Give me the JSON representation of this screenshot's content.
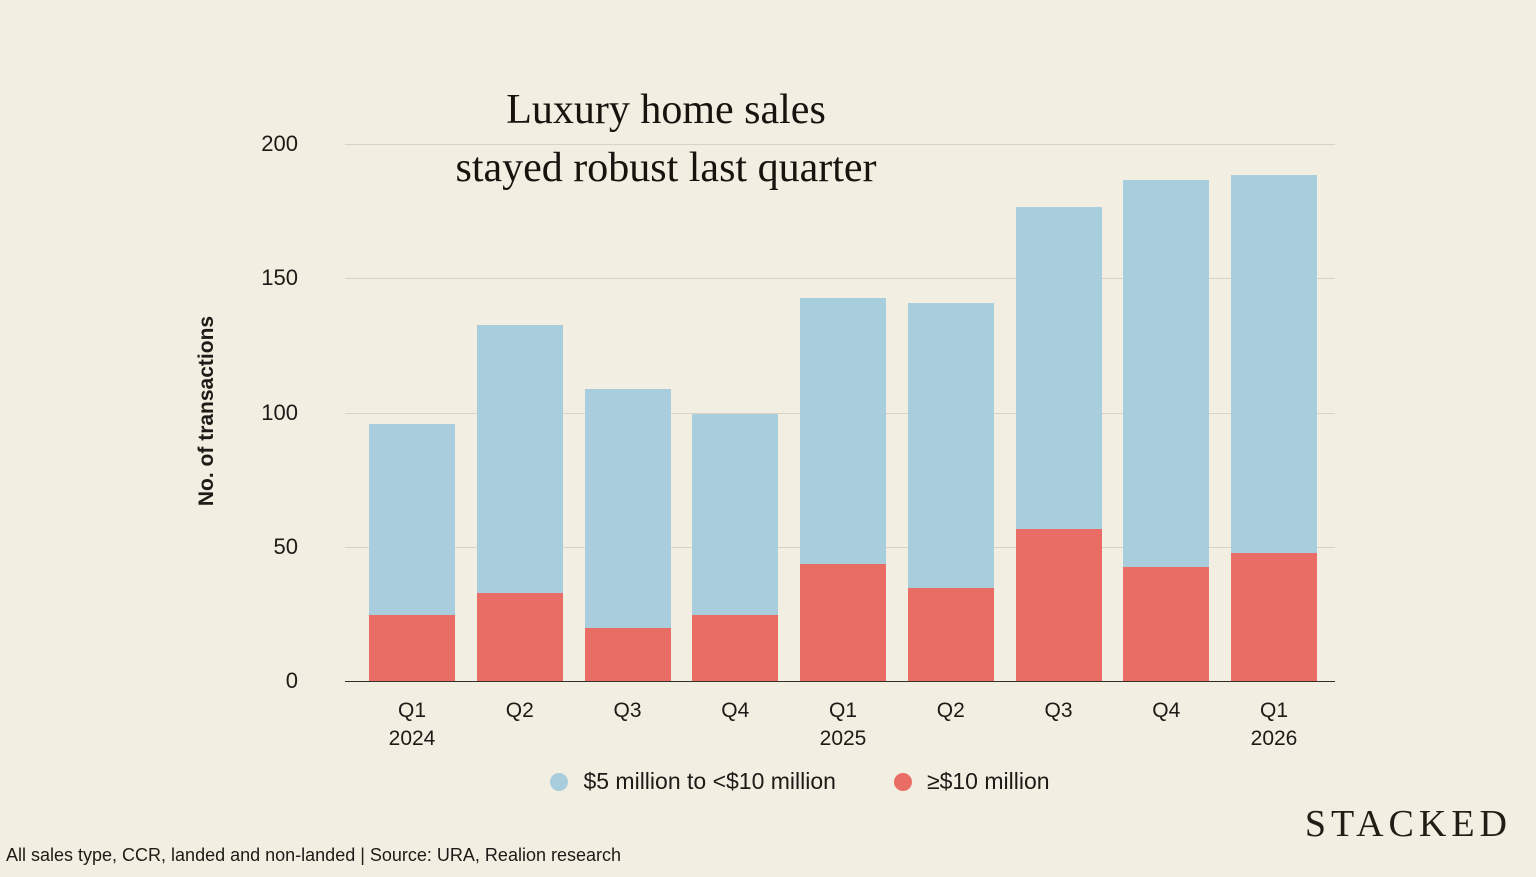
{
  "title": {
    "line1": "Luxury home sales",
    "line2": "stayed robust last quarter"
  },
  "y_axis": {
    "label": "No. of transactions",
    "ticks": [
      0,
      50,
      100,
      150,
      200
    ],
    "max": 200
  },
  "x_axis": {
    "quarters": [
      "Q1",
      "Q2",
      "Q3",
      "Q4",
      "Q1",
      "Q2",
      "Q3",
      "Q4",
      "Q1"
    ],
    "years": [
      "2024",
      "",
      "",
      "",
      "2025",
      "",
      "",
      "",
      "2026"
    ]
  },
  "legend": [
    {
      "label": "$5 million to <$10 million",
      "color": "#a8cede"
    },
    {
      "label": "≥$10 million",
      "color": "#e96d64"
    }
  ],
  "footer": {
    "note": "All sales type, CCR, landed and non-landed | Source: URA, Realion research"
  },
  "brand": "STACKED",
  "colors": {
    "background": "#f2eee1",
    "blue_series": "#a8cede",
    "red_series": "#e96d64",
    "gridline": "#d8d3c6",
    "axis_line": "#33302a",
    "text": "#1d1b17"
  },
  "chart_data": {
    "type": "bar",
    "stacked": true,
    "title": "Luxury home sales stayed robust last quarter",
    "ylabel": "No. of transactions",
    "ylim": [
      0,
      200
    ],
    "grid": true,
    "legend_position": "bottom",
    "categories": [
      "Q1 2024",
      "Q2 2024",
      "Q3 2024",
      "Q4 2024",
      "Q1 2025",
      "Q2 2025",
      "Q3 2025",
      "Q4 2025",
      "Q1 2026"
    ],
    "series": [
      {
        "name": "≥$10 million",
        "color": "#e96d64",
        "values": [
          25,
          33,
          20,
          25,
          44,
          35,
          57,
          43,
          48
        ]
      },
      {
        "name": "$5 million to <$10 million",
        "color": "#a8cede",
        "values": [
          71,
          100,
          89,
          75,
          99,
          106,
          120,
          144,
          141
        ]
      }
    ],
    "totals": [
      96,
      133,
      109,
      100,
      143,
      141,
      177,
      187,
      189
    ]
  }
}
